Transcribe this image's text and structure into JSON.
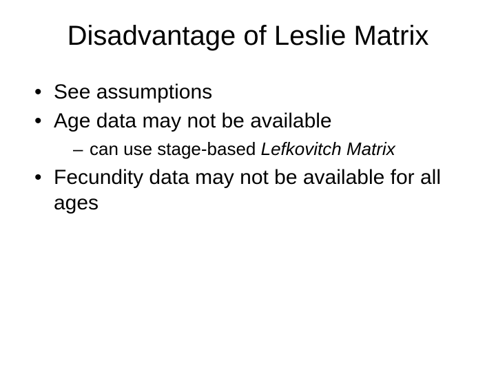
{
  "slide": {
    "background_color": "#ffffff",
    "text_color": "#000000",
    "title": {
      "text": "Disadvantage of Leslie Matrix",
      "fontsize": 40,
      "align": "center"
    },
    "body_fontsize": 30,
    "sub_fontsize": 26,
    "bullets": [
      {
        "text": "See assumptions"
      },
      {
        "text": "Age data may not be available",
        "sub": [
          {
            "prefix": "can use stage-based ",
            "italic": "Lefkovitch Matrix"
          }
        ]
      },
      {
        "text": "Fecundity data may not be available for all ages"
      }
    ]
  }
}
